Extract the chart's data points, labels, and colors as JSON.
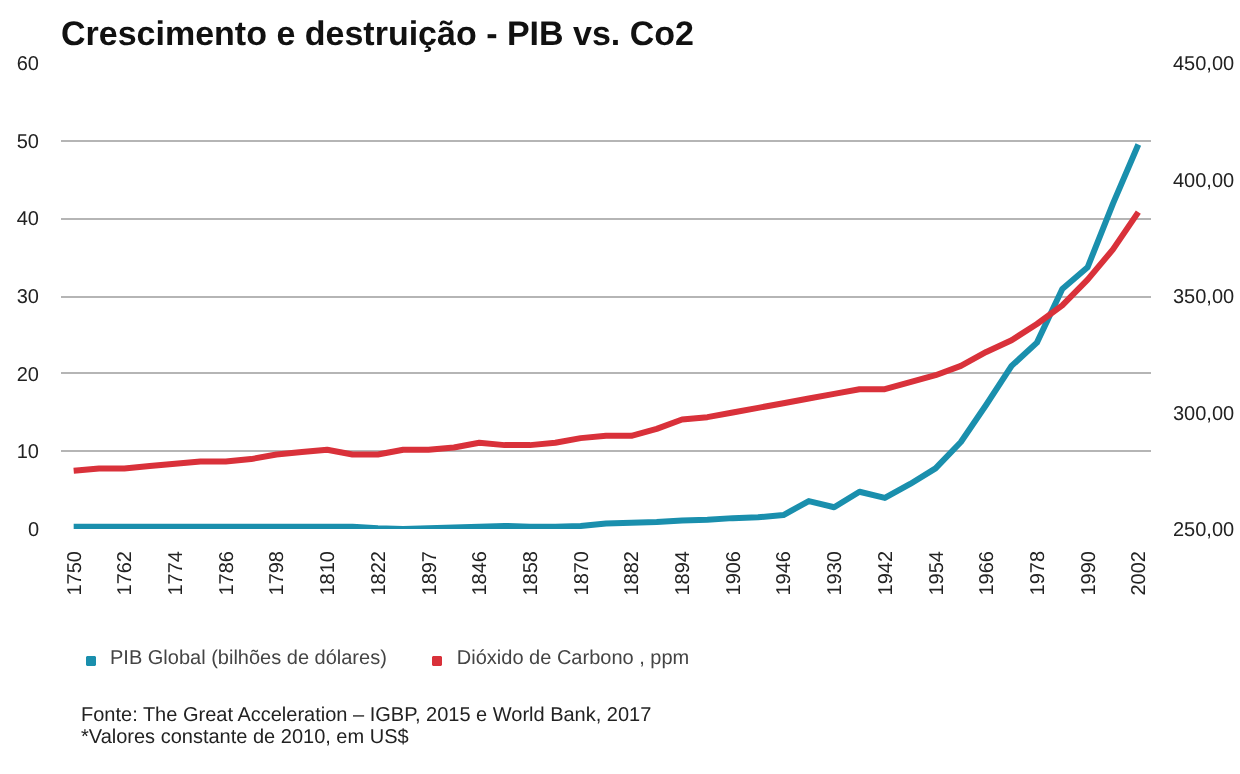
{
  "chart_data": {
    "type": "line",
    "title": "Crescimento e destruição - PIB vs. Co2",
    "categories": [
      "1750",
      null,
      "1762",
      null,
      "1774",
      null,
      "1786",
      null,
      "1798",
      null,
      "1810",
      null,
      "1822",
      null,
      "1897",
      null,
      "1846",
      null,
      "1858",
      null,
      "1870",
      null,
      "1882",
      null,
      "1894",
      null,
      "1906",
      null,
      "1946",
      null,
      "1930",
      null,
      "1942",
      null,
      "1954",
      null,
      "1966",
      null,
      "1978",
      null,
      "1990",
      null,
      "2002"
    ],
    "series": [
      {
        "name": "PIB Global (bilhões de dólares)",
        "color": "#1a8fad",
        "values": [
          0.3,
          0.3,
          0.3,
          0.3,
          0.3,
          0.3,
          0.3,
          0.3,
          0.3,
          0.3,
          0.3,
          0.3,
          0.1,
          0.0,
          0.1,
          0.2,
          0.3,
          0.4,
          0.3,
          0.3,
          0.4,
          0.7,
          0.8,
          0.9,
          1.1,
          1.2,
          1.4,
          1.5,
          1.8,
          3.6,
          2.8,
          4.8,
          4.0,
          5.8,
          7.8,
          11.2,
          16.0,
          21.0,
          24.0,
          30.9,
          33.7,
          41.9,
          49.5
        ]
      },
      {
        "name": "Dióxido de Carbono , ppm",
        "color": "#d9313a",
        "axis": "y2",
        "values": [
          275,
          276,
          276,
          277,
          278,
          279,
          279,
          280,
          282,
          283,
          284,
          282,
          282,
          284,
          284,
          285,
          287,
          286,
          286,
          287,
          289,
          290,
          290,
          293,
          297,
          298,
          300,
          302,
          304,
          306,
          308,
          310,
          310,
          313,
          316,
          320,
          326,
          331,
          338,
          346,
          357,
          370,
          386
        ]
      }
    ],
    "ylim": [
      0,
      60
    ],
    "yticks": [
      0,
      10,
      20,
      30,
      40,
      50,
      60
    ],
    "y2lim": [
      250,
      450
    ],
    "y2ticks": [
      {
        "value": 250,
        "label": "250,00"
      },
      {
        "value": 300,
        "label": "300,00"
      },
      {
        "value": 350,
        "label": "350,00"
      },
      {
        "value": 400,
        "label": "400,00"
      },
      {
        "value": 450,
        "label": "450,00"
      }
    ],
    "grid": "y",
    "legend": "bottom",
    "line_style": "solid",
    "annotations": [
      "Fonte: The Great Acceleration – IGBP, 2015 e World Bank, 2017",
      "*Valores constante de 2010, em US$"
    ]
  }
}
